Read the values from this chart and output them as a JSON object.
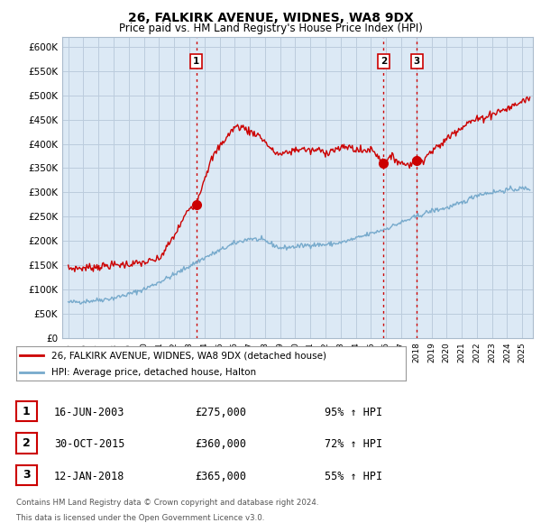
{
  "title": "26, FALKIRK AVENUE, WIDNES, WA8 9DX",
  "subtitle": "Price paid vs. HM Land Registry's House Price Index (HPI)",
  "ylabel_ticks": [
    "£0",
    "£50K",
    "£100K",
    "£150K",
    "£200K",
    "£250K",
    "£300K",
    "£350K",
    "£400K",
    "£450K",
    "£500K",
    "£550K",
    "£600K"
  ],
  "ytick_values": [
    0,
    50000,
    100000,
    150000,
    200000,
    250000,
    300000,
    350000,
    400000,
    450000,
    500000,
    550000,
    600000
  ],
  "ylim": [
    0,
    620000
  ],
  "xlim_start": 1994.6,
  "xlim_end": 2025.7,
  "sale_color": "#cc0000",
  "hpi_color": "#77aacc",
  "sale_label": "26, FALKIRK AVENUE, WIDNES, WA8 9DX (detached house)",
  "hpi_label": "HPI: Average price, detached house, Halton",
  "plot_bg": "#dce9f5",
  "transactions": [
    {
      "num": 1,
      "date_x": 2003.45,
      "price": 275000,
      "label": "1",
      "date_str": "16-JUN-2003",
      "price_str": "£275,000",
      "pct": "95% ↑ HPI"
    },
    {
      "num": 2,
      "date_x": 2015.83,
      "price": 360000,
      "label": "2",
      "date_str": "30-OCT-2015",
      "price_str": "£360,000",
      "pct": "72% ↑ HPI"
    },
    {
      "num": 3,
      "date_x": 2018.04,
      "price": 365000,
      "label": "3",
      "date_str": "12-JAN-2018",
      "price_str": "£365,000",
      "pct": "55% ↑ HPI"
    }
  ],
  "footer_line1": "Contains HM Land Registry data © Crown copyright and database right 2024.",
  "footer_line2": "This data is licensed under the Open Government Licence v3.0.",
  "background_color": "#ffffff",
  "grid_color": "#bbccdd"
}
